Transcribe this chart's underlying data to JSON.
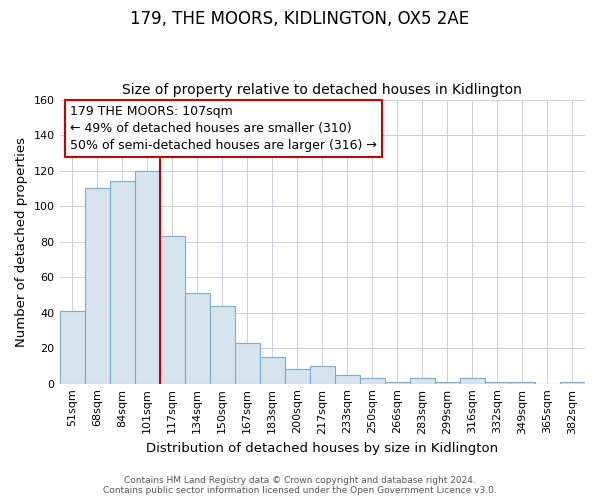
{
  "title": "179, THE MOORS, KIDLINGTON, OX5 2AE",
  "subtitle": "Size of property relative to detached houses in Kidlington",
  "xlabel": "Distribution of detached houses by size in Kidlington",
  "ylabel": "Number of detached properties",
  "categories": [
    "51sqm",
    "68sqm",
    "84sqm",
    "101sqm",
    "117sqm",
    "134sqm",
    "150sqm",
    "167sqm",
    "183sqm",
    "200sqm",
    "217sqm",
    "233sqm",
    "250sqm",
    "266sqm",
    "283sqm",
    "299sqm",
    "316sqm",
    "332sqm",
    "349sqm",
    "365sqm",
    "382sqm"
  ],
  "values": [
    41,
    110,
    114,
    120,
    83,
    51,
    44,
    23,
    15,
    8,
    10,
    5,
    3,
    1,
    3,
    1,
    3,
    1,
    1,
    0,
    1
  ],
  "bar_color": "#d6e4f0",
  "bar_edge_color": "#7aadcc",
  "vline_x_index": 3.5,
  "vline_color": "#cc0000",
  "annotation_title": "179 THE MOORS: 107sqm",
  "annotation_line1": "← 49% of detached houses are smaller (310)",
  "annotation_line2": "50% of semi-detached houses are larger (316) →",
  "box_color": "#ffffff",
  "box_edge_color": "#cc0000",
  "ylim": [
    0,
    160
  ],
  "yticks": [
    0,
    20,
    40,
    60,
    80,
    100,
    120,
    140,
    160
  ],
  "footer_line1": "Contains HM Land Registry data © Crown copyright and database right 2024.",
  "footer_line2": "Contains public sector information licensed under the Open Government Licence v3.0.",
  "title_fontsize": 12,
  "subtitle_fontsize": 10,
  "axis_label_fontsize": 9.5,
  "tick_fontsize": 8,
  "annotation_fontsize": 9,
  "footer_fontsize": 6.5,
  "background_color": "#ffffff",
  "grid_color": "#ccccdd"
}
